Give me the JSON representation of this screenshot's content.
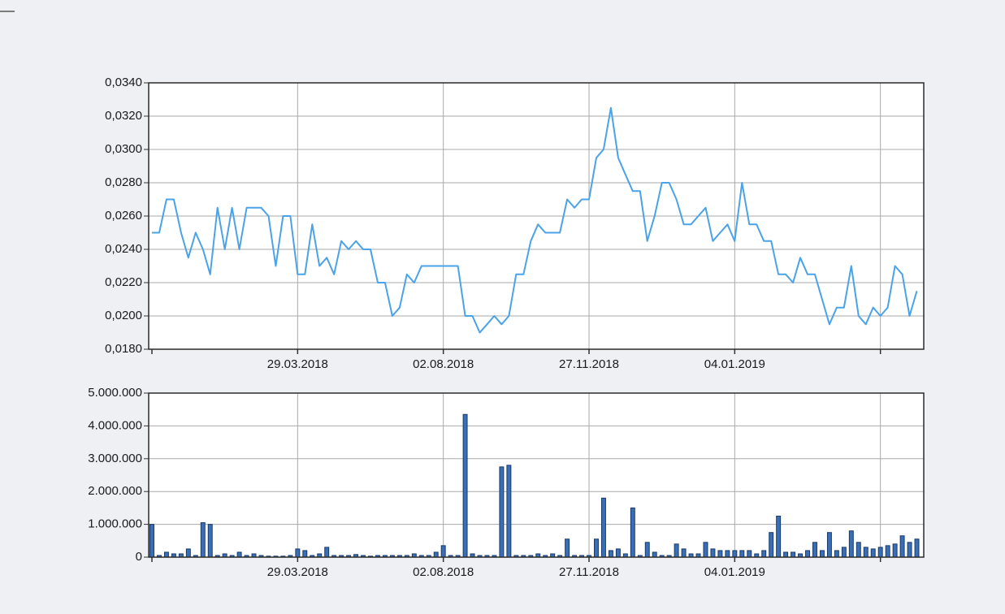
{
  "chart_data": [
    {
      "type": "line",
      "color": "#4aa3e8",
      "grid": true,
      "categories": [
        null,
        null,
        null,
        null,
        null,
        null,
        null,
        null,
        null,
        null,
        null,
        null,
        null,
        null,
        null,
        null,
        null,
        null,
        null,
        null,
        "29.03.2018",
        null,
        null,
        null,
        null,
        null,
        null,
        null,
        null,
        null,
        null,
        null,
        null,
        null,
        null,
        null,
        null,
        null,
        null,
        null,
        "02.08.2018",
        null,
        null,
        null,
        null,
        null,
        null,
        null,
        null,
        null,
        null,
        null,
        null,
        null,
        null,
        null,
        null,
        null,
        null,
        null,
        "27.11.2018",
        null,
        null,
        null,
        null,
        null,
        null,
        null,
        null,
        null,
        null,
        null,
        null,
        null,
        null,
        null,
        null,
        null,
        null,
        null,
        "04.01.2019",
        null,
        null,
        null,
        null,
        null,
        null,
        null,
        null,
        null,
        null,
        null,
        null,
        null,
        null,
        null,
        null,
        null,
        null,
        null,
        null,
        null,
        null,
        null,
        null,
        null
      ],
      "values": [
        0.025,
        0.025,
        0.027,
        0.027,
        0.025,
        0.0235,
        0.025,
        0.024,
        0.0225,
        0.0265,
        0.024,
        0.0265,
        0.024,
        0.0265,
        0.0265,
        0.0265,
        0.026,
        0.023,
        0.026,
        0.026,
        0.0225,
        0.0225,
        0.0255,
        0.023,
        0.0235,
        0.0225,
        0.0245,
        0.024,
        0.0245,
        0.024,
        0.024,
        0.022,
        0.022,
        0.02,
        0.0205,
        0.0225,
        0.022,
        0.023,
        0.023,
        0.023,
        0.023,
        0.023,
        0.023,
        0.02,
        0.02,
        0.019,
        0.0195,
        0.02,
        0.0195,
        0.02,
        0.0225,
        0.0225,
        0.0245,
        0.0255,
        0.025,
        0.025,
        0.025,
        0.027,
        0.0265,
        0.027,
        0.027,
        0.0295,
        0.03,
        0.0325,
        0.0295,
        0.0285,
        0.0275,
        0.0275,
        0.0245,
        0.026,
        0.028,
        0.028,
        0.027,
        0.0255,
        0.0255,
        0.026,
        0.0265,
        0.0245,
        0.025,
        0.0255,
        0.0245,
        0.028,
        0.0255,
        0.0255,
        0.0245,
        0.0245,
        0.0225,
        0.0225,
        0.022,
        0.0235,
        0.0225,
        0.0225,
        0.021,
        0.0195,
        0.0205,
        0.0205,
        0.023,
        0.02,
        0.0195,
        0.0205,
        0.02,
        0.0205,
        0.023,
        0.0225,
        0.02,
        0.0215
      ],
      "ylim": [
        0.018,
        0.034
      ],
      "yticks": [
        {
          "value": 0.018,
          "label": "0,0180"
        },
        {
          "value": 0.02,
          "label": "0,0200"
        },
        {
          "value": 0.022,
          "label": "0,0220"
        },
        {
          "value": 0.024,
          "label": "0,0240"
        },
        {
          "value": 0.026,
          "label": "0,0260"
        },
        {
          "value": 0.028,
          "label": "0,0280"
        },
        {
          "value": 0.03,
          "label": "0,0300"
        },
        {
          "value": 0.032,
          "label": "0,0320"
        },
        {
          "value": 0.034,
          "label": "0,0340"
        }
      ]
    },
    {
      "type": "bar",
      "color": "#3b6fb5",
      "grid": true,
      "categories": [
        null,
        null,
        null,
        null,
        null,
        null,
        null,
        null,
        null,
        null,
        null,
        null,
        null,
        null,
        null,
        null,
        null,
        null,
        null,
        null,
        "29.03.2018",
        null,
        null,
        null,
        null,
        null,
        null,
        null,
        null,
        null,
        null,
        null,
        null,
        null,
        null,
        null,
        null,
        null,
        null,
        null,
        "02.08.2018",
        null,
        null,
        null,
        null,
        null,
        null,
        null,
        null,
        null,
        null,
        null,
        null,
        null,
        null,
        null,
        null,
        null,
        null,
        null,
        "27.11.2018",
        null,
        null,
        null,
        null,
        null,
        null,
        null,
        null,
        null,
        null,
        null,
        null,
        null,
        null,
        null,
        null,
        null,
        null,
        null,
        "04.01.2019",
        null,
        null,
        null,
        null,
        null,
        null,
        null,
        null,
        null,
        null,
        null,
        null,
        null,
        null,
        null,
        null,
        null,
        null,
        null,
        null,
        null,
        null,
        null,
        null,
        null
      ],
      "values": [
        1000000,
        50000,
        150000,
        100000,
        100000,
        250000,
        50000,
        1050000,
        1000000,
        50000,
        100000,
        50000,
        150000,
        50000,
        100000,
        50000,
        30000,
        30000,
        30000,
        50000,
        250000,
        200000,
        50000,
        100000,
        300000,
        50000,
        50000,
        50000,
        80000,
        50000,
        30000,
        50000,
        50000,
        50000,
        50000,
        50000,
        100000,
        50000,
        50000,
        150000,
        350000,
        50000,
        50000,
        4350000,
        100000,
        50000,
        50000,
        50000,
        2750000,
        2800000,
        50000,
        50000,
        50000,
        100000,
        50000,
        100000,
        50000,
        550000,
        50000,
        50000,
        50000,
        550000,
        1800000,
        200000,
        250000,
        100000,
        1500000,
        50000,
        450000,
        150000,
        50000,
        50000,
        400000,
        250000,
        100000,
        100000,
        450000,
        250000,
        200000,
        200000,
        200000,
        200000,
        200000,
        100000,
        200000,
        750000,
        1250000,
        150000,
        150000,
        100000,
        200000,
        450000,
        200000,
        750000,
        200000,
        300000,
        800000,
        450000,
        300000,
        250000,
        300000,
        350000,
        400000,
        650000,
        450000,
        550000
      ],
      "ylim": [
        0,
        5000000
      ],
      "yticks": [
        0,
        {
          "value": 1000000,
          "label": "1.000.000"
        },
        {
          "value": 2000000,
          "label": "2.000.000"
        },
        {
          "value": 3000000,
          "label": "3.000.000"
        },
        {
          "value": 4000000,
          "label": "4.000.000"
        },
        {
          "value": 5000000,
          "label": "5.000.000"
        }
      ]
    }
  ]
}
